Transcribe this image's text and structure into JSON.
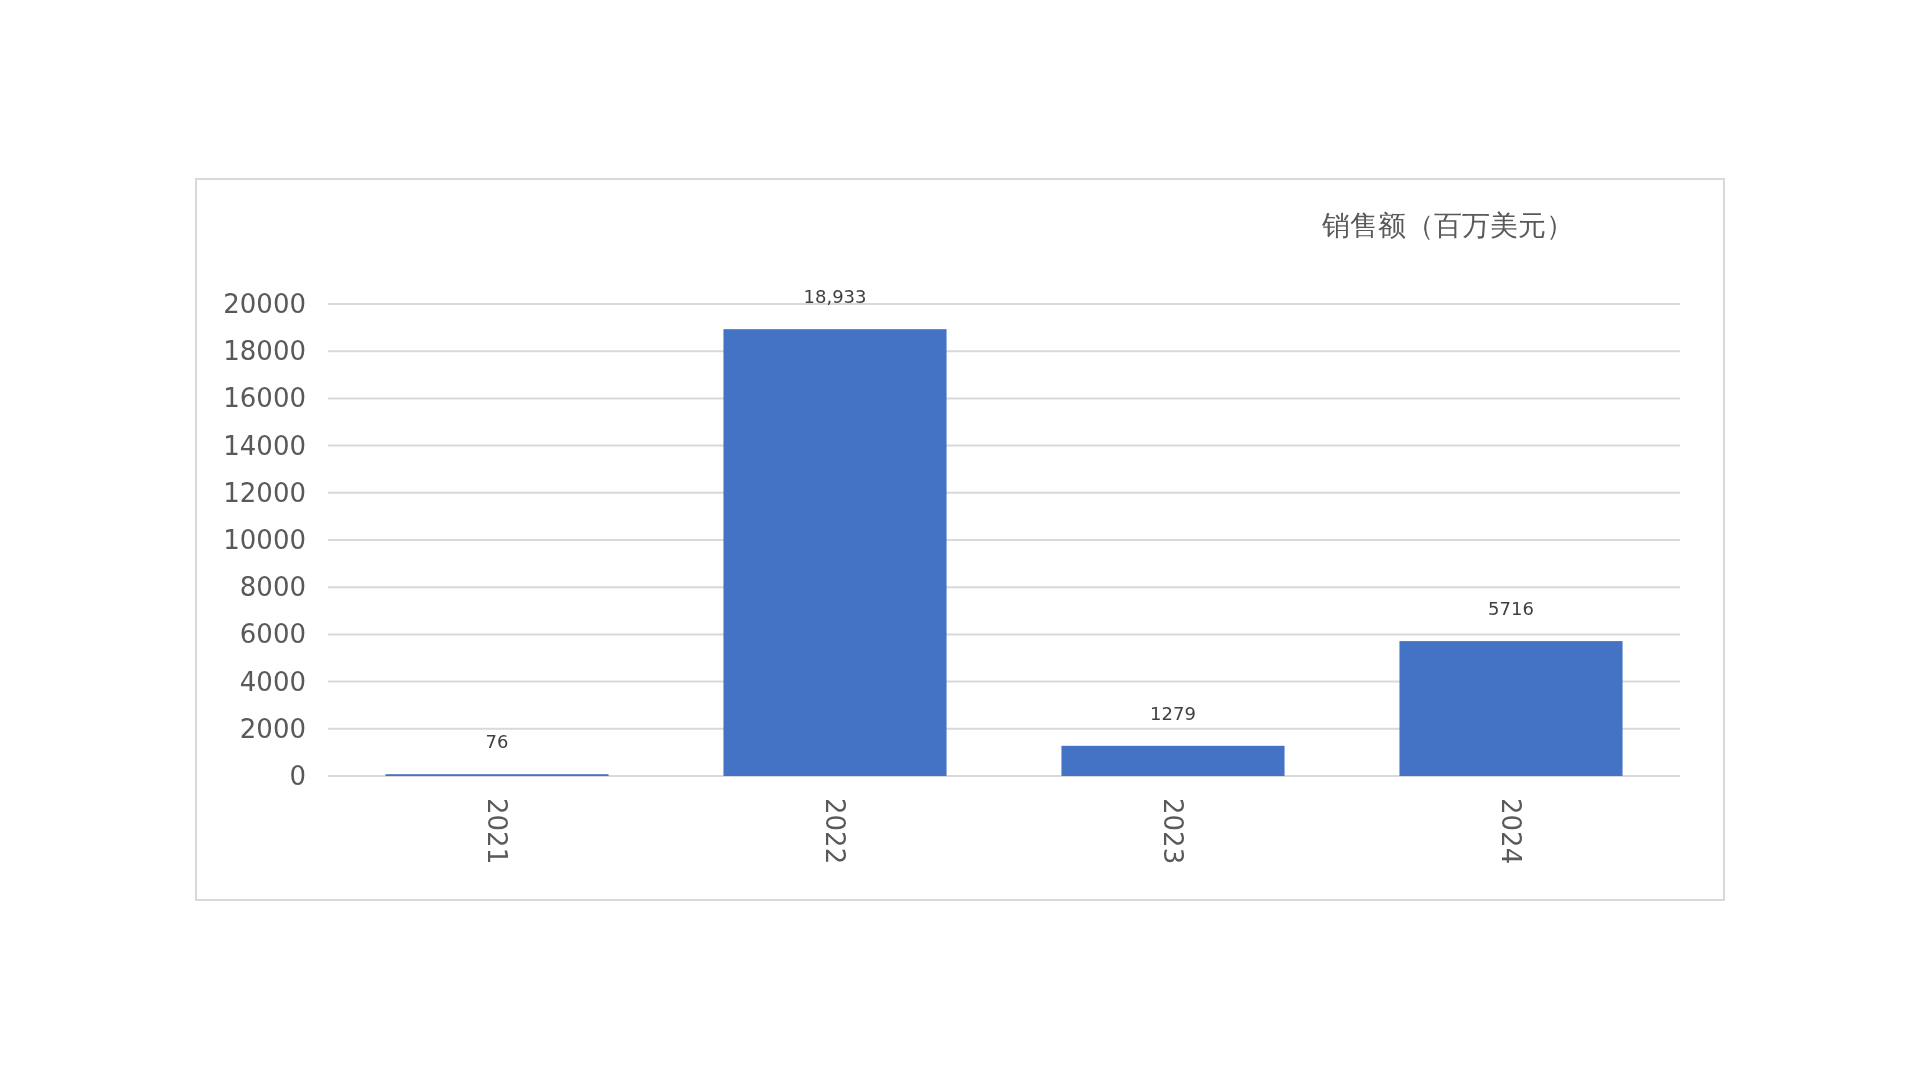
{
  "chart_data": {
    "type": "bar",
    "title": "销售额（百万美元）",
    "categories": [
      "2021",
      "2022",
      "2023",
      "2024"
    ],
    "values": [
      76,
      18933,
      1279,
      5716
    ],
    "value_labels": [
      "76",
      "18,933",
      "1279",
      "5716"
    ],
    "color": "#4472c4",
    "ylim": [
      0,
      20000
    ],
    "yticks": [
      0,
      2000,
      4000,
      6000,
      8000,
      10000,
      12000,
      14000,
      16000,
      18000,
      20000
    ],
    "grid": "y"
  }
}
